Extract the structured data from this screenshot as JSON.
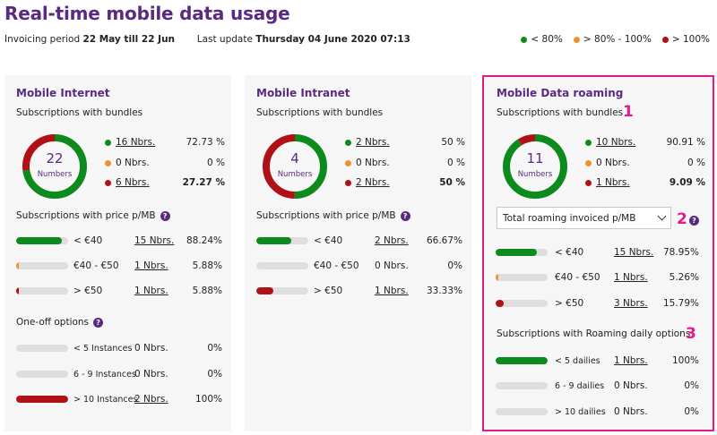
{
  "header": {
    "title": "Real-time mobile data usage",
    "period_label": "Invoicing period",
    "period_value": "22 May till 22 Jun",
    "update_label": "Last update",
    "update_value": "Thursday 04 June 2020 07:13"
  },
  "legend": [
    {
      "label": "< 80%",
      "color": "#0c8a1c"
    },
    {
      "label": "> 80% - 100%",
      "color": "#f0902e"
    },
    {
      "label": "> 100%",
      "color": "#b01116"
    }
  ],
  "cards": [
    {
      "title": "Mobile Internet",
      "bundles_title": "Subscriptions with bundles",
      "donut": {
        "count": "22",
        "unit": "Numbers",
        "fractions": [
          0.7273,
          0.0,
          0.2727
        ]
      },
      "bundles": [
        {
          "nbrs": "16 Nbrs.",
          "pct": "72.73 %"
        },
        {
          "nbrs": "0 Nbrs.",
          "pct": "0 %"
        },
        {
          "nbrs": "6 Nbrs.",
          "pct": "27.27 %"
        }
      ],
      "price_title": "Subscriptions with price p/MB",
      "price_rows": [
        {
          "label": "< €40",
          "nbrs": "15 Nbrs.",
          "pct": "88.24%",
          "fill": 0.8824,
          "color": "green"
        },
        {
          "label": "€40 - €50",
          "nbrs": "1 Nbrs.",
          "pct": "5.88%",
          "fill": 0.0588,
          "color": "orange"
        },
        {
          "label": "> €50",
          "nbrs": "1 Nbrs.",
          "pct": "5.88%",
          "fill": 0.0588,
          "color": "red"
        }
      ],
      "oneoff_title": "One-off options",
      "oneoff_rows": [
        {
          "label": "< 5 Instances",
          "nbrs": "0 Nbrs.",
          "pct": "0%",
          "fill": 0,
          "color": "green"
        },
        {
          "label": "6 - 9 Instances",
          "nbrs": "0 Nbrs.",
          "pct": "0%",
          "fill": 0,
          "color": "green"
        },
        {
          "label": "> 10 Instances",
          "nbrs": "2 Nbrs.",
          "pct": "100%",
          "fill": 1.0,
          "color": "red"
        }
      ]
    },
    {
      "title": "Mobile Intranet",
      "bundles_title": "Subscriptions with bundles",
      "donut": {
        "count": "4",
        "unit": "Numbers",
        "fractions": [
          0.5,
          0.0,
          0.5
        ]
      },
      "bundles": [
        {
          "nbrs": "2 Nbrs.",
          "pct": "50 %"
        },
        {
          "nbrs": "0 Nbrs.",
          "pct": "0 %"
        },
        {
          "nbrs": "2 Nbrs.",
          "pct": "50 %"
        }
      ],
      "price_title": "Subscriptions with price p/MB",
      "price_rows": [
        {
          "label": "< €40",
          "nbrs": "2 Nbrs.",
          "pct": "66.67%",
          "fill": 0.6667,
          "color": "green"
        },
        {
          "label": "€40 - €50",
          "nbrs": "0 Nbrs.",
          "pct": "0%",
          "fill": 0,
          "color": "orange"
        },
        {
          "label": "> €50",
          "nbrs": "1 Nbrs.",
          "pct": "33.33%",
          "fill": 0.3333,
          "color": "red"
        }
      ]
    },
    {
      "title": "Mobile Data roaming",
      "bundles_title": "Subscriptions with bundles",
      "donut": {
        "count": "11",
        "unit": "Numbers",
        "fractions": [
          0.9091,
          0.0,
          0.0909
        ]
      },
      "bundles": [
        {
          "nbrs": "10 Nbrs.",
          "pct": "90.91 %"
        },
        {
          "nbrs": "0 Nbrs.",
          "pct": "0 %"
        },
        {
          "nbrs": "1 Nbrs.",
          "pct": "9.09 %"
        }
      ],
      "select_value": "Total roaming invoiced p/MB",
      "price_rows": [
        {
          "label": "< €40",
          "nbrs": "15 Nbrs.",
          "pct": "78.95%",
          "fill": 0.7895,
          "color": "green"
        },
        {
          "label": "€40 - €50",
          "nbrs": "1 Nbrs.",
          "pct": "5.26%",
          "fill": 0.0526,
          "color": "orange"
        },
        {
          "label": "> €50",
          "nbrs": "3 Nbrs.",
          "pct": "15.79%",
          "fill": 0.1579,
          "color": "red"
        }
      ],
      "daily_title": "Subscriptions with Roaming daily options",
      "daily_rows": [
        {
          "label": "< 5 dailies",
          "nbrs": "1 Nbrs.",
          "pct": "100%",
          "fill": 1.0,
          "color": "green"
        },
        {
          "label": "6 - 9 dailies",
          "nbrs": "0 Nbrs.",
          "pct": "0%",
          "fill": 0,
          "color": "green"
        },
        {
          "label": "> 10 dailies",
          "nbrs": "0 Nbrs.",
          "pct": "0%",
          "fill": 0,
          "color": "green"
        }
      ]
    }
  ],
  "markers": [
    "1",
    "2",
    "3"
  ],
  "help_glyph": "?"
}
